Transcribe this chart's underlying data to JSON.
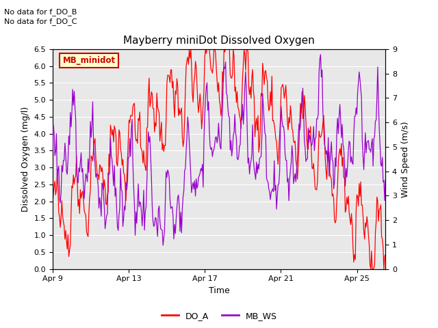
{
  "title": "Mayberry miniDot Dissolved Oxygen",
  "xlabel": "Time",
  "ylabel_left": "Dissolved Oxygen (mg/l)",
  "ylabel_right": "Wind Speed (m/s)",
  "annotation1": "No data for f_DO_B",
  "annotation2": "No data for f_DO_C",
  "legend_box_label": "MB_minidot",
  "legend_entries": [
    "DO_A",
    "MB_WS"
  ],
  "color_DO_A": "#ff0000",
  "color_MB_WS": "#9900cc",
  "ylim_left": [
    0.0,
    6.5
  ],
  "ylim_right": [
    0.0,
    9.0
  ],
  "yticks_left": [
    0.0,
    0.5,
    1.0,
    1.5,
    2.0,
    2.5,
    3.0,
    3.5,
    4.0,
    4.5,
    5.0,
    5.5,
    6.0,
    6.5
  ],
  "yticks_right": [
    0.0,
    1.0,
    2.0,
    3.0,
    4.0,
    5.0,
    6.0,
    7.0,
    8.0,
    9.0
  ],
  "xtick_labels": [
    "Apr 9",
    "Apr 13",
    "Apr 17",
    "Apr 21",
    "Apr 25"
  ],
  "xtick_positions": [
    0,
    4,
    8,
    12,
    16
  ],
  "bg_color": "#e8e8e8",
  "grid_color": "#ffffff",
  "legend_box_bg": "#ffffcc",
  "legend_box_edge": "#cc0000",
  "fig_width": 6.4,
  "fig_height": 4.8,
  "fig_dpi": 100
}
